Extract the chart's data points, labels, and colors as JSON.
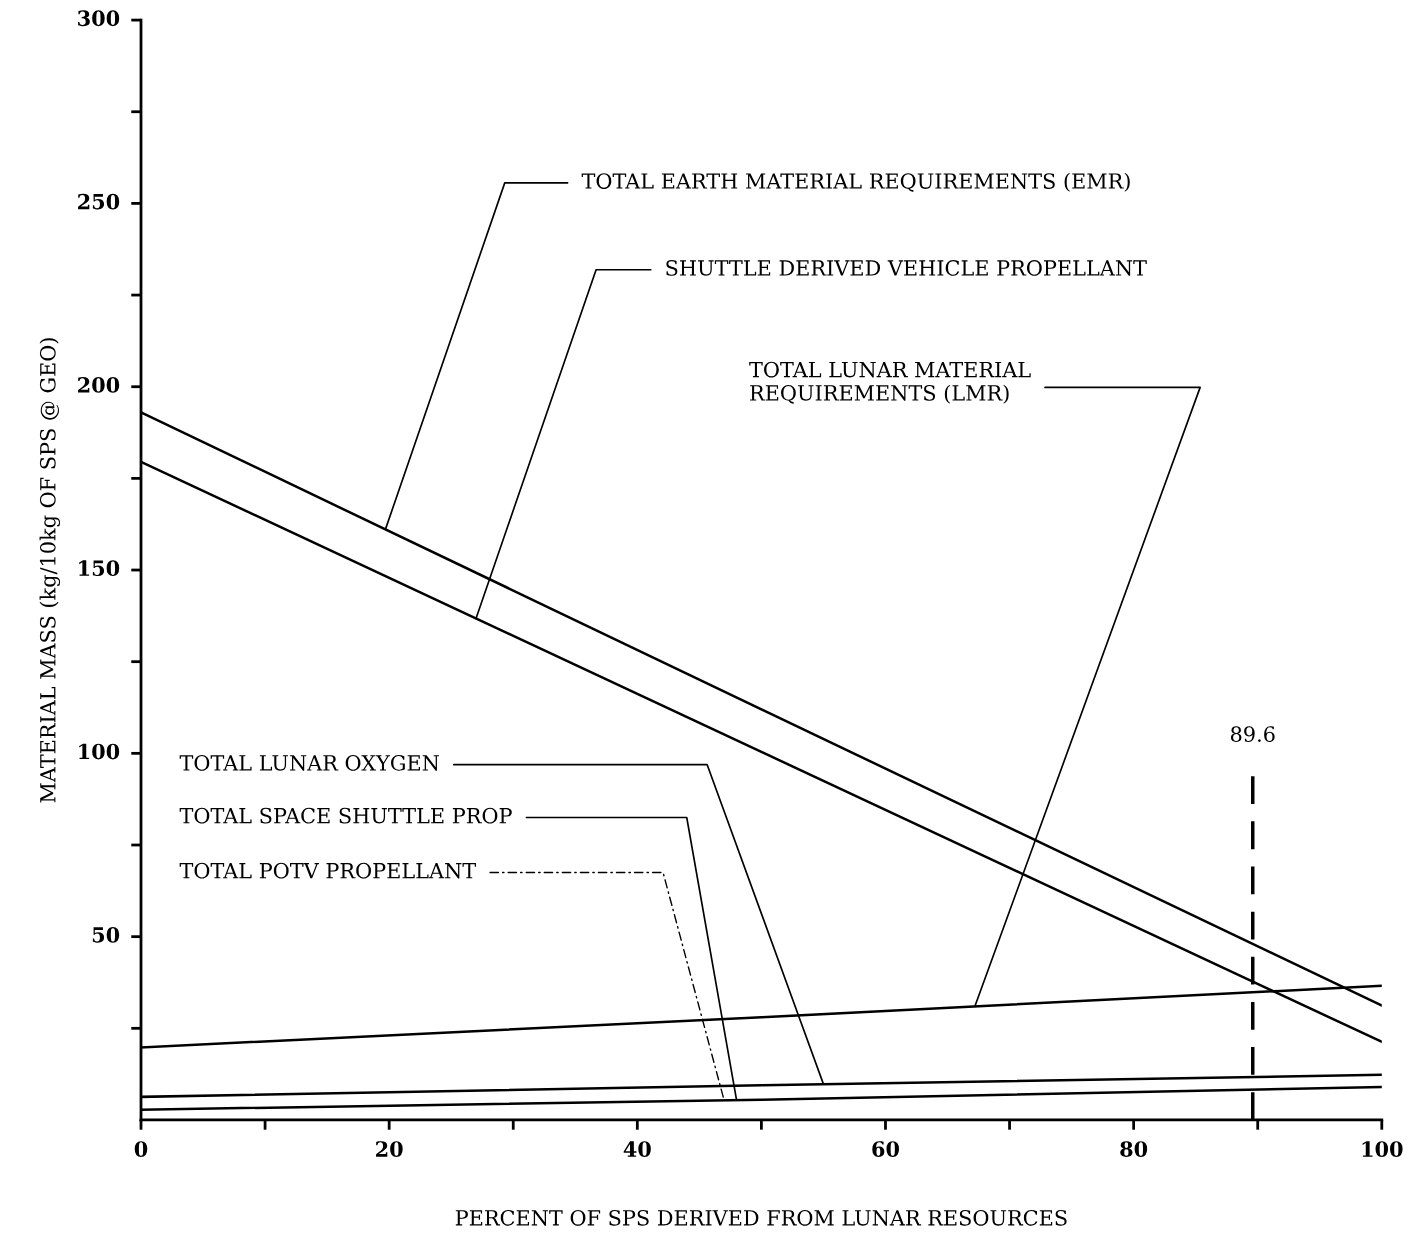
{
  "chart_data": {
    "type": "line",
    "xlabel": "PERCENT OF SPS DERIVED FROM LUNAR RESOURCES",
    "ylabel": "MATERIAL MASS (kg/10kg OF SPS @ GEO)",
    "x": [
      0,
      50,
      100
    ],
    "series": [
      {
        "name": "TOTAL EARTH MATERIAL REQUIREMENTS (EMR)",
        "color": "#000000",
        "values": [
          193,
          112,
          31.2
        ]
      },
      {
        "name": "SHUTTLE DERIVED VEHICLE PROPELLANT",
        "color": "#000000",
        "values": [
          179.5,
          100.4,
          21.3
        ]
      },
      {
        "name": "TOTAL LUNAR MATERIAL\nREQUIREMENTS (LMR)",
        "color": "#000000",
        "values": [
          19.8,
          28,
          36.6
        ]
      },
      {
        "name": "TOTAL LUNAR OXYGEN",
        "color": "#000000",
        "values": [
          6.3,
          9.5,
          12.3
        ]
      },
      {
        "name": "TOTAL SPACE SHUTTLE PROP",
        "color": "#000000",
        "values": [
          2.8,
          5.5,
          9.0
        ]
      }
    ],
    "annotations": [
      {
        "text": "TOTAL POTV PROPELLANT",
        "x": 47,
        "y": 5.3
      }
    ],
    "ref_lines": [
      {
        "axis": "x",
        "value": 89.6,
        "label": "89.6",
        "line_style": "dashed",
        "color": "#000000"
      }
    ],
    "xlim": [
      0,
      100
    ],
    "xticks": [
      0,
      {
        "value": 10,
        "label": null
      },
      20,
      {
        "value": 30,
        "label": null
      },
      40,
      {
        "value": 50,
        "label": null
      },
      60,
      {
        "value": 70,
        "label": null
      },
      80,
      {
        "value": 90,
        "label": null
      },
      100
    ],
    "ylim": [
      0,
      300
    ],
    "yticks": [
      {
        "value": 25,
        "label": null
      },
      50,
      {
        "value": 75,
        "label": null
      },
      100,
      {
        "value": 125,
        "label": null
      },
      150,
      {
        "value": 175,
        "label": null
      },
      200,
      {
        "value": 225,
        "label": null
      },
      250,
      {
        "value": 275,
        "label": null
      },
      300
    ],
    "grid": false,
    "legend": false,
    "marker": "none",
    "line_style": "solid"
  }
}
